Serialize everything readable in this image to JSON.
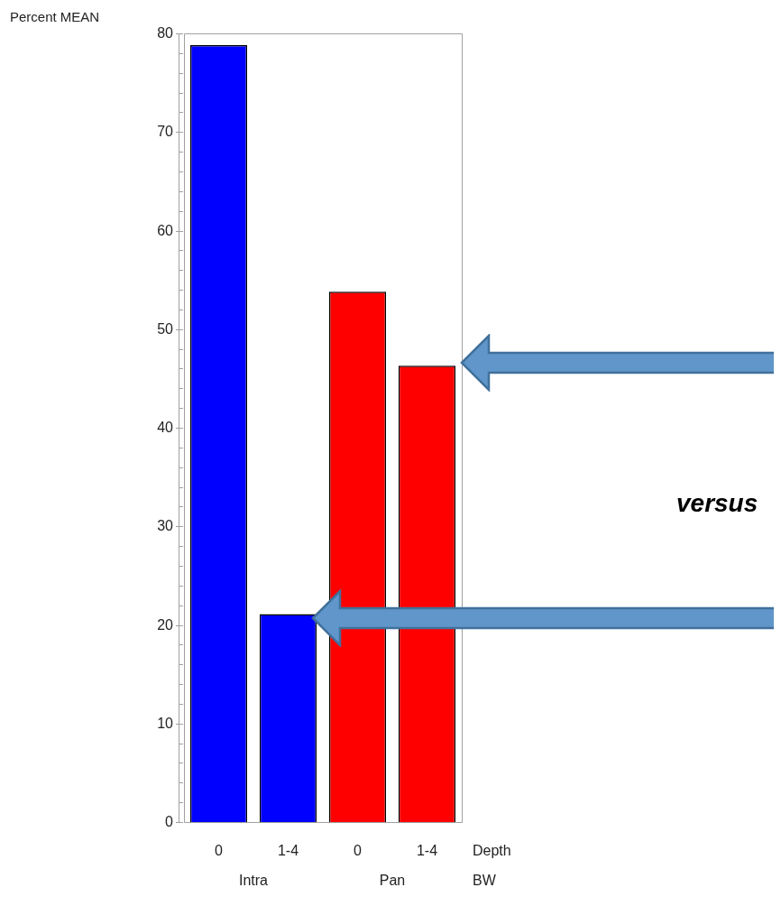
{
  "chart_data": {
    "type": "bar",
    "ylabel": "Percent MEAN",
    "xlabel": "Depth",
    "categories": [
      "0",
      "1-4",
      "0",
      "1-4"
    ],
    "values": [
      78.8,
      21.1,
      53.8,
      46.3
    ],
    "colors": [
      "#0000ff",
      "#0000ff",
      "#ff0000",
      "#ff0000"
    ],
    "ylim": [
      0,
      80
    ],
    "yticks": [
      0,
      {
        "value": 2,
        "label": null
      },
      {
        "value": 4,
        "label": null
      },
      {
        "value": 6,
        "label": null
      },
      {
        "value": 8,
        "label": null
      },
      10,
      {
        "value": 12,
        "label": null
      },
      {
        "value": 14,
        "label": null
      },
      {
        "value": 16,
        "label": null
      },
      {
        "value": 18,
        "label": null
      },
      20,
      {
        "value": 22,
        "label": null
      },
      {
        "value": 24,
        "label": null
      },
      {
        "value": 26,
        "label": null
      },
      {
        "value": 28,
        "label": null
      },
      30,
      {
        "value": 32,
        "label": null
      },
      {
        "value": 34,
        "label": null
      },
      {
        "value": 36,
        "label": null
      },
      {
        "value": 38,
        "label": null
      },
      40,
      {
        "value": 42,
        "label": null
      },
      {
        "value": 44,
        "label": null
      },
      {
        "value": 46,
        "label": null
      },
      {
        "value": 48,
        "label": null
      },
      50,
      {
        "value": 52,
        "label": null
      },
      {
        "value": 54,
        "label": null
      },
      {
        "value": 56,
        "label": null
      },
      {
        "value": 58,
        "label": null
      },
      60,
      {
        "value": 62,
        "label": null
      },
      {
        "value": 64,
        "label": null
      },
      {
        "value": 66,
        "label": null
      },
      {
        "value": 68,
        "label": null
      },
      70,
      {
        "value": 72,
        "label": null
      },
      {
        "value": 74,
        "label": null
      },
      {
        "value": 76,
        "label": null
      },
      {
        "value": 78,
        "label": null
      },
      80
    ],
    "grid": false,
    "legend": false,
    "annotations": [
      "Intra",
      "Pan",
      "BW",
      "versus"
    ]
  }
}
